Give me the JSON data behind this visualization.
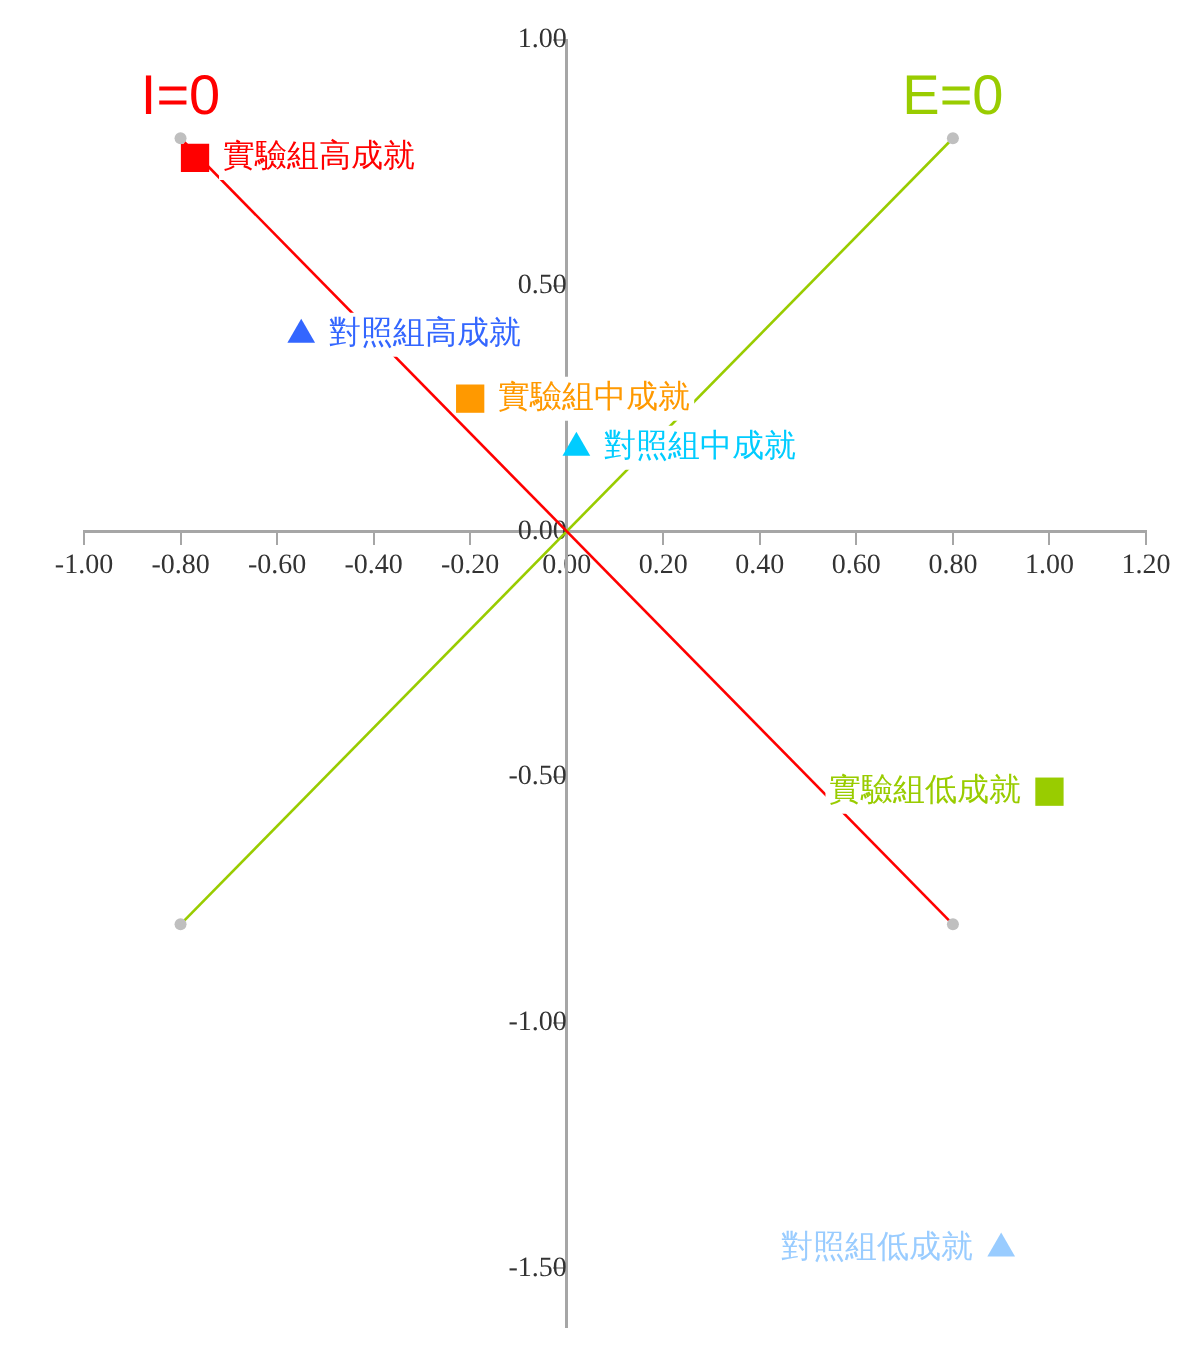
{
  "chart_data": {
    "type": "scatter",
    "xlim": [
      -1.0,
      1.2
    ],
    "ylim": [
      -1.62,
      1.0
    ],
    "xticks": [
      {
        "value": -1.0,
        "label": "-1.00"
      },
      {
        "value": -0.8,
        "label": "-0.80"
      },
      {
        "value": -0.6,
        "label": "-0.60"
      },
      {
        "value": -0.4,
        "label": "-0.40"
      },
      {
        "value": -0.2,
        "label": "-0.20"
      },
      {
        "value": 0,
        "label": "0.00"
      },
      {
        "value": 0.2,
        "label": "0.20"
      },
      {
        "value": 0.4,
        "label": "0.40"
      },
      {
        "value": 0.6,
        "label": "0.60"
      },
      {
        "value": 0.8,
        "label": "0.80"
      },
      {
        "value": 1.0,
        "label": "1.00"
      },
      {
        "value": 1.2,
        "label": "1.20"
      }
    ],
    "yticks": [
      {
        "value": 1.0,
        "label": "1.00"
      },
      {
        "value": 0.5,
        "label": "0.50"
      },
      {
        "value": 0,
        "label": "0.00"
      },
      {
        "value": -0.5,
        "label": "-0.50"
      },
      {
        "value": -1.0,
        "label": "-1.00"
      },
      {
        "value": -1.5,
        "label": "-1.50"
      }
    ],
    "grid": false,
    "legend": false,
    "series": [
      {
        "type": "line",
        "name": "I=0",
        "color": "#ff0000",
        "marker": "circle",
        "x": [
          -0.8,
          0.8
        ],
        "values": [
          0.8,
          -0.8
        ]
      },
      {
        "type": "line",
        "name": "E=0",
        "color": "#99cc00",
        "marker": "circle",
        "x": [
          -0.8,
          0.8
        ],
        "values": [
          -0.8,
          0.8
        ]
      },
      {
        "name": "實驗組高成就",
        "color": "#ff0000",
        "marker": "square",
        "x": [
          -0.77
        ],
        "values": [
          0.76
        ]
      },
      {
        "name": "對照組高成就",
        "color": "#3366ff",
        "marker": "triangle",
        "x": [
          -0.55
        ],
        "values": [
          0.4
        ]
      },
      {
        "name": "實驗組中成就",
        "color": "#ff9900",
        "marker": "square",
        "x": [
          -0.2
        ],
        "values": [
          0.27
        ]
      },
      {
        "name": "對照組中成就",
        "color": "#00ccff",
        "marker": "triangle",
        "x": [
          0.02
        ],
        "values": [
          0.17
        ]
      },
      {
        "name": "實驗組低成就",
        "color": "#99cc00",
        "marker": "square",
        "x": [
          1.0
        ],
        "values": [
          -0.53
        ]
      },
      {
        "name": "對照組低成就",
        "color": "#99ccff",
        "marker": "triangle",
        "x": [
          0.9
        ],
        "values": [
          -1.46
        ]
      }
    ]
  }
}
